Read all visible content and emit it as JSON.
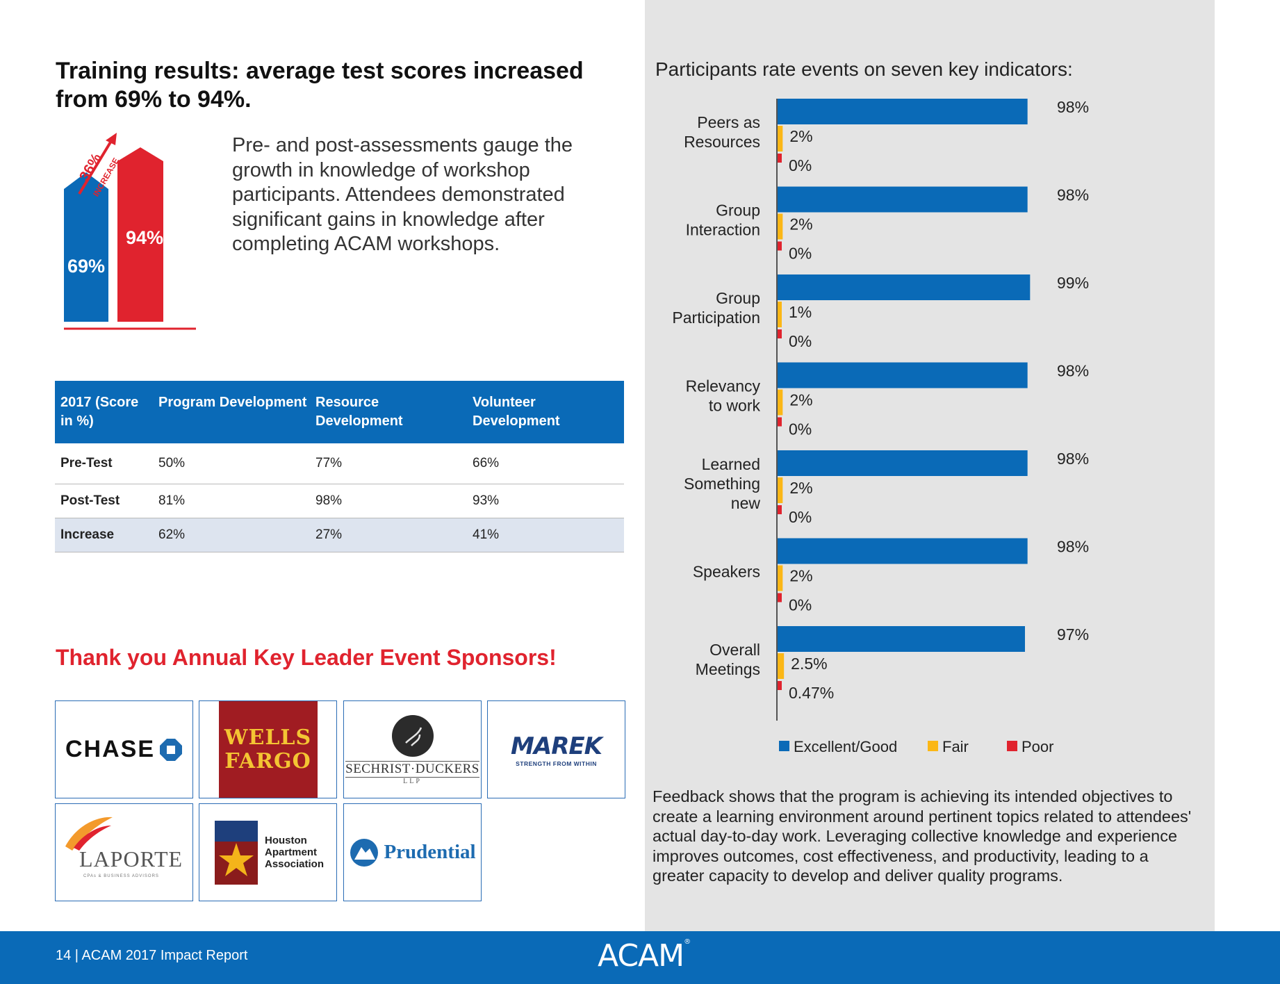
{
  "left": {
    "headline": "Training results: average test scores increased from 69% to 94%.",
    "intro": "Pre- and post-assessments gauge the growth in knowledge of workshop participants. Attendees demonstrated significant gains in knowledge after completing ACAM workshops.",
    "infographic": {
      "pre_value": "69%",
      "post_value": "94%",
      "increase_pct": "36%",
      "increase_word": "INCREASE",
      "colors": {
        "pre": "#0a6ab7",
        "post": "#e0232e"
      }
    },
    "table": {
      "header": {
        "c0": "2017 (Score in %)",
        "c1": "Program Development",
        "c2": "Resource Development",
        "c3": "Volunteer Development"
      },
      "rows": [
        {
          "label": "Pre-Test",
          "program": "50%",
          "resource": "77%",
          "volunteer": "66%"
        },
        {
          "label": "Post-Test",
          "program": "81%",
          "resource": "98%",
          "volunteer": "93%"
        },
        {
          "label": "Increase",
          "program": "62%",
          "resource": "27%",
          "volunteer": "41%"
        }
      ]
    },
    "sponsor_title": "Thank you Annual Key Leader Event Sponsors!",
    "sponsors": {
      "chase": "CHASE",
      "wells_fargo_line1": "WELLS",
      "wells_fargo_line2": "FARGO",
      "sechrist": "SECHRIST·DUCKERS",
      "sechrist_llp": "LLP",
      "marek": "MAREK",
      "marek_tag": "STRENGTH FROM WITHIN",
      "laporte": "LAPORTE",
      "laporte_tag": "CPAs & BUSINESS ADVISORS",
      "haa_line1": "Houston",
      "haa_line2": "Apartment",
      "haa_line3": "Association",
      "prudential": "Prudential"
    }
  },
  "right": {
    "chart_title": "Participants rate events on seven key indicators:",
    "feedback": "Feedback shows that the program is achieving its intended objectives to create a learning environment around pertinent topics related to attendees' actual day-to-day work. Leveraging collective knowledge and experience improves outcomes, cost effectiveness, and productivity, leading to a greater capacity to develop and deliver quality programs."
  },
  "footer": {
    "page_label": "14  |  ACAM 2017 Impact Report",
    "logo": "ACAM"
  },
  "chart_data": {
    "type": "bar",
    "orientation": "horizontal",
    "title": "Participants rate events on seven key indicators:",
    "categories": [
      [
        "Peers as",
        "Resources"
      ],
      [
        "Group",
        "Interaction"
      ],
      [
        "Group",
        "Participation"
      ],
      [
        "Relevancy",
        "to work"
      ],
      [
        "Learned",
        "Something",
        "new"
      ],
      [
        "Speakers"
      ],
      [
        "Overall",
        "Meetings"
      ]
    ],
    "series": [
      {
        "name": "Excellent/Good",
        "color": "#0a6ab7",
        "values": [
          98,
          98,
          99,
          98,
          98,
          98,
          97
        ],
        "labels": [
          "98%",
          "98%",
          "99%",
          "98%",
          "98%",
          "98%",
          "97%"
        ]
      },
      {
        "name": "Fair",
        "color": "#fbb716",
        "values": [
          2,
          2,
          1,
          2,
          2,
          2,
          2.5
        ],
        "labels": [
          "2%",
          "2%",
          "1%",
          "2%",
          "2%",
          "2%",
          "2.5%"
        ]
      },
      {
        "name": "Poor",
        "color": "#e0232e",
        "values": [
          0,
          0,
          0,
          0,
          0,
          0,
          0.47
        ],
        "labels": [
          "0%",
          "0%",
          "0%",
          "0%",
          "0%",
          "0%",
          "0.47%"
        ]
      }
    ],
    "xlim": [
      0,
      100
    ],
    "legend": "bottom"
  }
}
